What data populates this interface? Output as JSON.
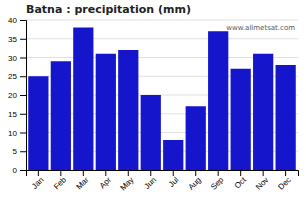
{
  "chart_data": {
    "type": "bar",
    "title": "Batna : precipitation (mm)",
    "categories": [
      "Jan",
      "Feb",
      "Mar",
      "Apr",
      "May",
      "Jun",
      "Jul",
      "Aug",
      "Sep",
      "Oct",
      "Nov",
      "Dec"
    ],
    "values": [
      25,
      29,
      38,
      31,
      32,
      20,
      8,
      17,
      37,
      27,
      31,
      28
    ],
    "color": "#1515CC",
    "ylim": [
      0,
      40
    ],
    "yticks": [
      0,
      5,
      10,
      15,
      20,
      25,
      30,
      35,
      40
    ],
    "grid": true,
    "annotations": [
      "www.allmetsat.com"
    ]
  }
}
